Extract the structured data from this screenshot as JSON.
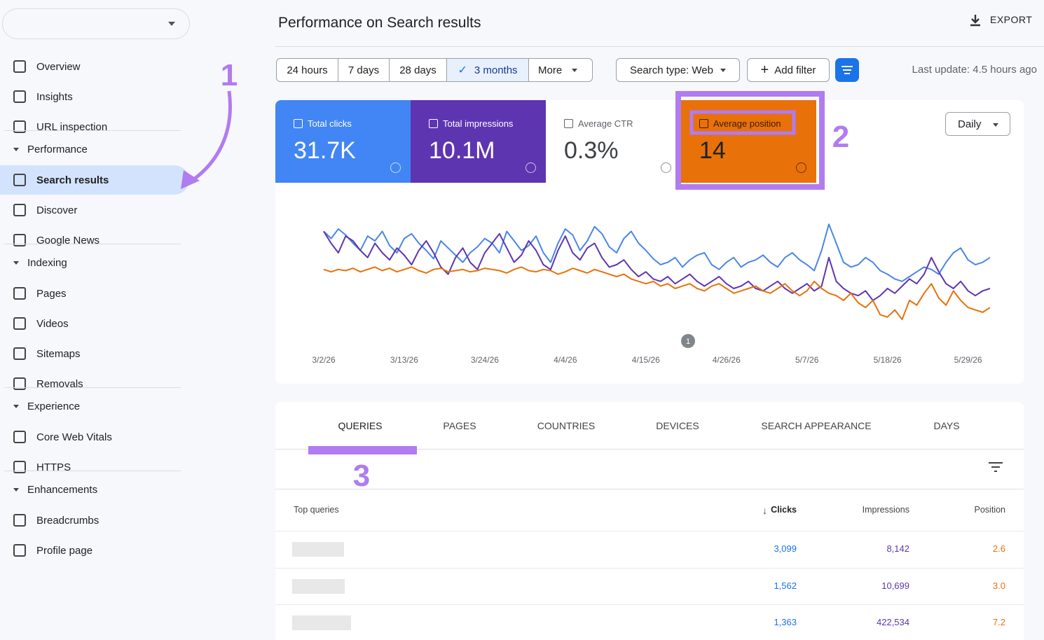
{
  "sidebar": {
    "sections": [
      {
        "items": [
          "Overview",
          "Insights",
          "URL inspection"
        ]
      },
      {
        "title": "Performance",
        "items": [
          "Search results",
          "Discover",
          "Google News"
        ]
      },
      {
        "title": "Indexing",
        "items": [
          "Pages",
          "Videos",
          "Sitemaps",
          "Removals"
        ]
      },
      {
        "title": "Experience",
        "items": [
          "Core Web Vitals",
          "HTTPS"
        ]
      },
      {
        "title": "Enhancements",
        "items": [
          "Breadcrumbs",
          "Profile page"
        ]
      }
    ]
  },
  "header": {
    "title": "Performance on Search results",
    "export": "EXPORT"
  },
  "filters": {
    "ranges": [
      "24 hours",
      "7 days",
      "28 days",
      "3 months",
      "More"
    ],
    "search_type": "Search type: Web",
    "add_filter": "Add filter",
    "last_update": "Last update: 4.5 hours ago"
  },
  "metrics": [
    {
      "label": "Total clicks",
      "value": "31.7K"
    },
    {
      "label": "Total impressions",
      "value": "10.1M"
    },
    {
      "label": "Average CTR",
      "value": "0.3%"
    },
    {
      "label": "Average position",
      "value": "14"
    }
  ],
  "granularity": "Daily",
  "annotations": [
    "1",
    "2",
    "3"
  ],
  "chart_data": {
    "type": "line",
    "annotation": "1",
    "categories": [
      "3/2/26",
      null,
      null,
      null,
      null,
      null,
      null,
      null,
      null,
      null,
      null,
      "3/13/26",
      null,
      null,
      null,
      null,
      null,
      null,
      null,
      null,
      null,
      null,
      "3/24/26",
      null,
      null,
      null,
      null,
      null,
      null,
      null,
      null,
      null,
      null,
      "4/4/26",
      null,
      null,
      null,
      null,
      null,
      null,
      null,
      null,
      null,
      null,
      "4/15/26",
      null,
      null,
      null,
      null,
      null,
      null,
      null,
      null,
      null,
      null,
      "4/26/26",
      null,
      null,
      null,
      null,
      null,
      null,
      null,
      null,
      null,
      null,
      "5/7/26",
      null,
      null,
      null,
      null,
      null,
      null,
      null,
      null,
      null,
      null,
      "5/18/26",
      null,
      null,
      null,
      null,
      null,
      null,
      null,
      null,
      null,
      null,
      "5/29/26",
      null,
      null,
      null
    ],
    "ylim": [
      0,
      100
    ],
    "series": [
      {
        "name": "Total clicks",
        "color": "#4a86e8",
        "values": [
          88,
          82,
          90,
          85,
          78,
          72,
          84,
          80,
          88,
          76,
          70,
          82,
          86,
          78,
          72,
          65,
          80,
          74,
          68,
          62,
          70,
          75,
          82,
          78,
          70,
          88,
          80,
          72,
          76,
          84,
          70,
          62,
          78,
          90,
          85,
          72,
          80,
          92,
          86,
          75,
          70,
          82,
          88,
          78,
          72,
          65,
          60,
          62,
          66,
          58,
          64,
          68,
          70,
          60,
          56,
          62,
          66,
          58,
          62,
          64,
          68,
          62,
          58,
          66,
          70,
          64,
          60,
          55,
          72,
          94,
          78,
          62,
          58,
          60,
          66,
          62,
          55,
          52,
          48,
          46,
          50,
          54,
          58,
          56,
          52,
          62,
          70,
          74,
          64,
          60,
          62,
          66
        ]
      },
      {
        "name": "Total impressions",
        "color": "#5e35b1",
        "values": [
          88,
          78,
          70,
          84,
          80,
          72,
          66,
          78,
          70,
          64,
          74,
          68,
          60,
          72,
          80,
          70,
          58,
          52,
          66,
          74,
          62,
          56,
          70,
          78,
          86,
          74,
          62,
          68,
          80,
          72,
          60,
          56,
          72,
          84,
          70,
          64,
          74,
          78,
          66,
          58,
          60,
          64,
          56,
          50,
          54,
          48,
          46,
          50,
          44,
          48,
          52,
          46,
          42,
          46,
          50,
          44,
          40,
          42,
          46,
          40,
          38,
          42,
          46,
          40,
          36,
          40,
          44,
          38,
          42,
          66,
          46,
          40,
          36,
          34,
          38,
          30,
          34,
          40,
          36,
          42,
          48,
          44,
          52,
          66,
          54,
          44,
          40,
          46,
          38,
          34,
          38,
          40
        ]
      },
      {
        "name": "Average position",
        "color": "#e8710a",
        "values": [
          56,
          54,
          56,
          55,
          57,
          54,
          56,
          58,
          55,
          57,
          54,
          56,
          58,
          55,
          53,
          56,
          57,
          54,
          55,
          56,
          54,
          55,
          57,
          56,
          55,
          53,
          56,
          58,
          55,
          54,
          56,
          55,
          52,
          54,
          57,
          55,
          53,
          56,
          54,
          52,
          50,
          52,
          48,
          46,
          44,
          46,
          42,
          44,
          40,
          42,
          44,
          40,
          38,
          42,
          44,
          40,
          36,
          38,
          40,
          42,
          38,
          36,
          40,
          44,
          38,
          34,
          38,
          46,
          40,
          36,
          34,
          30,
          36,
          28,
          24,
          30,
          18,
          16,
          22,
          14,
          30,
          26,
          36,
          44,
          32,
          26,
          38,
          30,
          24,
          22,
          20,
          24
        ]
      }
    ]
  },
  "tabs": [
    "QUERIES",
    "PAGES",
    "COUNTRIES",
    "DEVICES",
    "SEARCH APPEARANCE",
    "DAYS"
  ],
  "table": {
    "headers": [
      "Top queries",
      "Clicks",
      "Impressions",
      "Position"
    ],
    "rows": [
      [
        "3,099",
        "8,142",
        "2.6"
      ],
      [
        "1,562",
        "10,699",
        "3.0"
      ],
      [
        "1,363",
        "422,534",
        "7.2"
      ]
    ]
  }
}
